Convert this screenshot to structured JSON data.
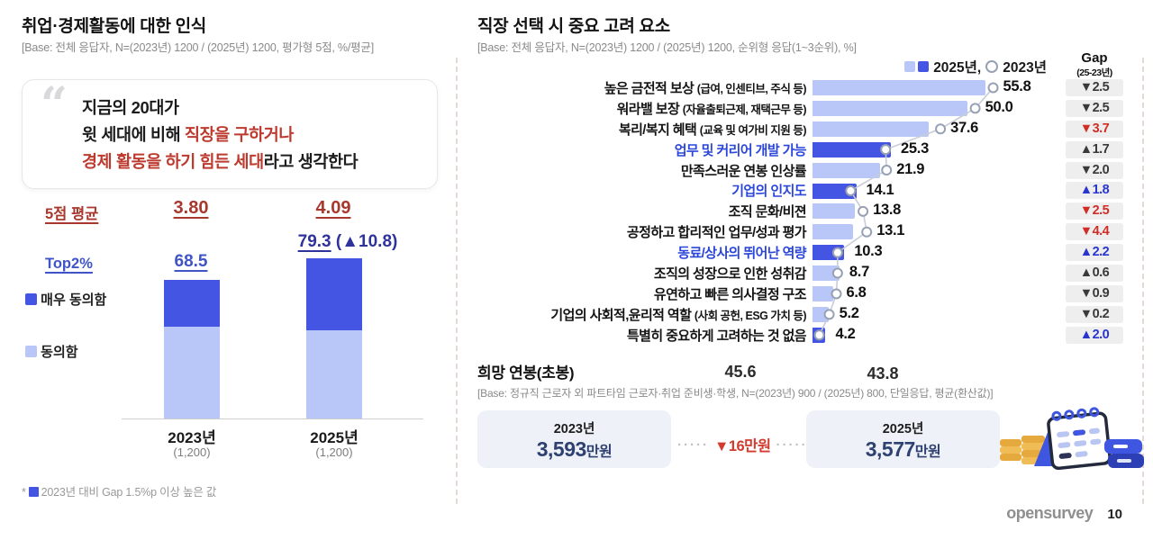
{
  "colors": {
    "bar_dark": "#4355e2",
    "bar_light": "#b8c7f7",
    "accent_red": "#bc3a2e",
    "accent_blue": "#2b46d9",
    "accent_navy": "#2e329b",
    "gap_red": "#cf2f28",
    "gap_blue": "#2a35cf",
    "salary_navy": "#2e4170"
  },
  "header_left": {
    "title": "취업·경제활동에 대한 인식",
    "base": "[Base: 전체 응답자, N=(2023년) 1200 / (2025년) 1200, 평가형 5점, %/평균]"
  },
  "quote": {
    "mark": "“",
    "line1": "지금의 20대가",
    "line2_black": "윗 세대에 비해 ",
    "line2_red": "직장을 구하거나",
    "line3_red": "경제 활동을 하기 힘든 세대",
    "line3_black": "라고 생각한다"
  },
  "stats": {
    "avg_label": "5점 평균",
    "avg_2023": "3.80",
    "avg_2025": "4.09",
    "top2_label": "Top2%",
    "top2_2023": "68.5",
    "top2_2025": "79.3",
    "top2_change": " (▲10.8)"
  },
  "legend_left": [
    {
      "label": "매우 동의함",
      "color": "#4355e2"
    },
    {
      "label": "동의함",
      "color": "#b8c7f7"
    }
  ],
  "footnote": {
    "star": "*",
    "text": "2023년 대비 Gap 1.5%p 이상 높은 값"
  },
  "header_right": {
    "title": "직장 선택 시 중요 고려 요소",
    "base": "[Base: 전체 응답자, N=(2023년) 1200 / (2025년) 1200, 순위형 응답(1~3순위), %]"
  },
  "legend_right": {
    "label_2025": "2025년,",
    "label_2023": "2023년"
  },
  "gap_header": {
    "line1": "Gap",
    "line2": "(25-23년)"
  },
  "chart_data": [
    {
      "type": "bar",
      "subtype": "stacked-column",
      "title": "취업·경제활동에 대한 인식",
      "categories": [
        "2023년",
        "2025년"
      ],
      "bases": [
        "(1,200)",
        "(1,200)"
      ],
      "series": [
        {
          "name": "매우 동의함",
          "values": [
            22.9,
            35.5
          ],
          "color": "#4355e2"
        },
        {
          "name": "동의함",
          "values": [
            45.6,
            43.8
          ],
          "color": "#b8c7f7"
        }
      ],
      "top2_totals": [
        68.5,
        79.3
      ],
      "top2_change": "(▲10.8)",
      "five_point_avg": [
        "3.80",
        "4.09"
      ],
      "ylim": [
        0,
        100
      ]
    },
    {
      "type": "bar",
      "subtype": "horizontal-comparison",
      "title": "직장 선택 시 중요 고려 요소",
      "legend": [
        "2025년",
        "2023년"
      ],
      "rows": [
        {
          "label": "높은 금전적 보상 ",
          "sub": "(급여, 인센티브, 주식 등)",
          "text": "55.8",
          "v2025": 55.8,
          "v2023": 58.3,
          "gap": "▼2.5",
          "gap_style": "dark",
          "bar": "light",
          "label_blue": false
        },
        {
          "label": "워라밸 보장 ",
          "sub": "(자율출퇴근제, 재택근무 등)",
          "text": "50.0",
          "v2025": 50.0,
          "v2023": 52.5,
          "gap": "▼2.5",
          "gap_style": "dark",
          "bar": "light",
          "label_blue": false
        },
        {
          "label": "복리/복지 혜택 ",
          "sub": "(교육 및 여가비 지원 등)",
          "text": "37.6",
          "v2025": 37.6,
          "v2023": 41.3,
          "gap": "▼3.7",
          "gap_style": "red",
          "bar": "light",
          "label_blue": false
        },
        {
          "label": "업무 및 커리어 개발 가능",
          "sub": "",
          "text": "25.3",
          "v2025": 25.3,
          "v2023": 23.6,
          "gap": "▲1.7",
          "gap_style": "dark",
          "bar": "dark",
          "label_blue": true
        },
        {
          "label": "만족스러운 연봉 인상률",
          "sub": "",
          "text": "21.9",
          "v2025": 21.9,
          "v2023": 23.9,
          "gap": "▼2.0",
          "gap_style": "dark",
          "bar": "light",
          "label_blue": false
        },
        {
          "label": "기업의 인지도",
          "sub": "",
          "text": "14.1",
          "v2025": 14.1,
          "v2023": 12.3,
          "gap": "▲1.8",
          "gap_style": "blue",
          "bar": "dark",
          "label_blue": true
        },
        {
          "label": "조직 문화/비젼",
          "sub": "",
          "text": "13.8",
          "v2025": 13.8,
          "v2023": 16.3,
          "gap": "▼2.5",
          "gap_style": "red",
          "bar": "light",
          "label_blue": false
        },
        {
          "label": "공정하고 합리적인 업무/성과 평가",
          "sub": "",
          "text": "13.1",
          "v2025": 13.1,
          "v2023": 17.5,
          "gap": "▼4.4",
          "gap_style": "red",
          "bar": "light",
          "label_blue": false
        },
        {
          "label": "동료/상사의 뛰어난 역량",
          "sub": "",
          "text": "10.3",
          "v2025": 10.3,
          "v2023": 8.1,
          "gap": "▲2.2",
          "gap_style": "blue",
          "bar": "dark",
          "label_blue": true
        },
        {
          "label": "조직의 성장으로 인한 성취감",
          "sub": "",
          "text": "8.7",
          "v2025": 8.7,
          "v2023": 8.1,
          "gap": "▲0.6",
          "gap_style": "dark",
          "bar": "light",
          "label_blue": false
        },
        {
          "label": "유연하고 빠른 의사결정 구조",
          "sub": "",
          "text": "6.8",
          "v2025": 6.8,
          "v2023": 7.7,
          "gap": "▼0.9",
          "gap_style": "dark",
          "bar": "light",
          "label_blue": false
        },
        {
          "label": "기업의 사회적,윤리적 역할 ",
          "sub": "(사회 공헌, ESG 가치 등)",
          "text": "5.2",
          "v2025": 5.2,
          "v2023": 5.4,
          "gap": "▼0.2",
          "gap_style": "dark",
          "bar": "light",
          "label_blue": false
        },
        {
          "label": "특별히 중요하게 고려하는 것 없음",
          "sub": "",
          "text": "4.2",
          "v2025": 4.2,
          "v2023": 2.2,
          "gap": "▲2.0",
          "gap_style": "blue",
          "bar": "dark",
          "label_blue": false
        }
      ]
    }
  ],
  "salary": {
    "title": "희망 연봉(초봉)",
    "base": "[Base: 정규직 근로자 외 파트타임 근로자·취업 준비생·학생, N=(2023년) 900 / (2025년) 800, 단일응답, 평균(환산값)]",
    "year_2023": "2023년",
    "amount_2023": "3,593",
    "year_2025": "2025년",
    "amount_2025": "3,577",
    "unit": "만원",
    "change": "▼16만원",
    "dots": "·····",
    "chevron": "›"
  },
  "footer": {
    "logo": "opensurvey",
    "page": "10"
  }
}
